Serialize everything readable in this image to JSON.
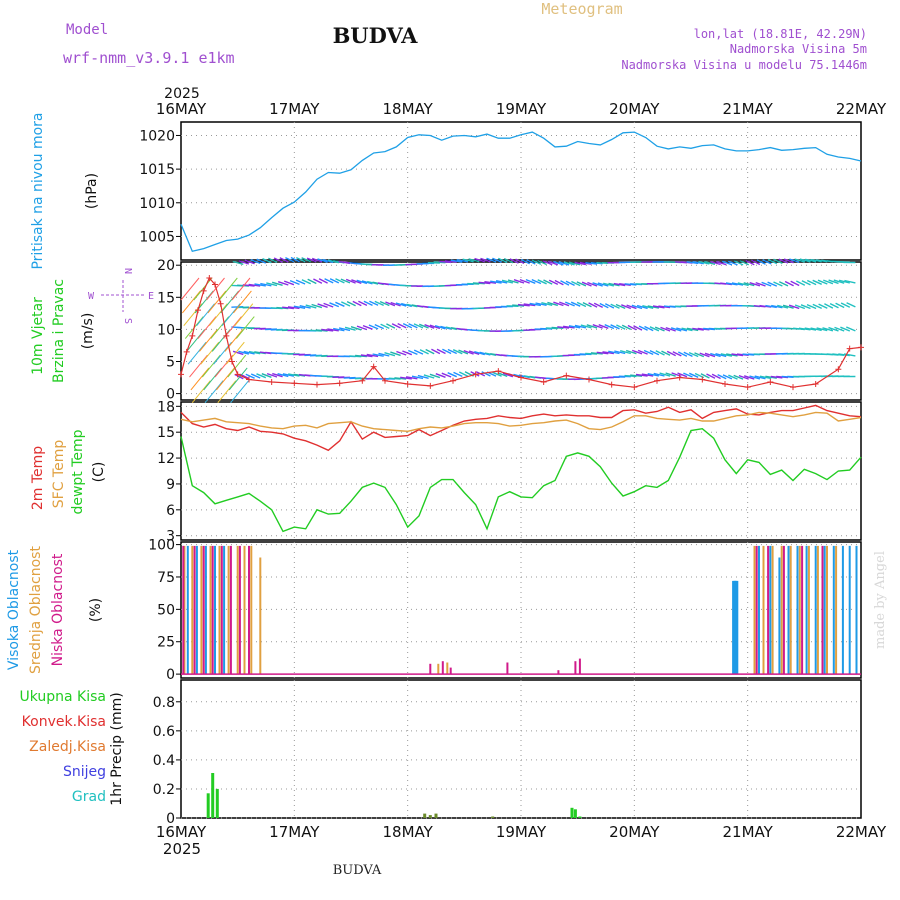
{
  "header": {
    "model_label": "Model",
    "model_name": "wrf-nmm_v3.9.1 e1km",
    "title": "BUDVA",
    "meteogram_label": "Meteogram",
    "coords": "lon,lat (18.81E, 42.29N)",
    "elevation": "Nadmorska Visina 5m",
    "model_elevation": "Nadmorska Visina u modelu 75.1446m",
    "footer_title": "BUDVA",
    "credit": "made by Angel"
  },
  "colors": {
    "pressure": "#1fa0e6",
    "wind_speed": "#e03030",
    "temp2m": "#e03030",
    "sfc_temp": "#e0a040",
    "dewpt": "#22cc22",
    "high_cloud": "#1e9ae6",
    "mid_cloud": "#e0a040",
    "low_cloud": "#d01a8a",
    "precip": "#22cc22",
    "title_purple": "#a050d0",
    "gold": "#e0c080"
  },
  "time_axis": {
    "year": "2025",
    "ticks": [
      "16MAY",
      "17MAY",
      "18MAY",
      "19MAY",
      "20MAY",
      "21MAY",
      "22MAY"
    ]
  },
  "chart_data": [
    {
      "type": "line",
      "panel": "pressure",
      "ylabel_main": "Pritisak na nivou mora",
      "ylabel_unit": "(hPa)",
      "yticks": [
        "1005",
        "1010",
        "1015",
        "1020"
      ],
      "ylim": [
        1001.5,
        1022
      ],
      "x": [
        0,
        0.1,
        0.2,
        0.3,
        0.4,
        0.5,
        0.6,
        0.7,
        0.8,
        0.9,
        1.0,
        1.1,
        1.2,
        1.3,
        1.4,
        1.5,
        1.6,
        1.7,
        1.8,
        1.9,
        2.0,
        2.1,
        2.2,
        2.3,
        2.4,
        2.5,
        2.6,
        2.7,
        2.8,
        2.9,
        3.0,
        3.1,
        3.2,
        3.3,
        3.4,
        3.5,
        3.6,
        3.7,
        3.8,
        3.9,
        4.0,
        4.1,
        4.2,
        4.3,
        4.4,
        4.5,
        4.6,
        4.7,
        4.8,
        4.9,
        5.0,
        5.1,
        5.2,
        5.3,
        5.4,
        5.5,
        5.6,
        5.7,
        5.8,
        5.9,
        6.0
      ],
      "values": [
        1006.8,
        1002.8,
        1003.2,
        1003.8,
        1004.4,
        1004.6,
        1005.2,
        1006.3,
        1007.8,
        1009.2,
        1010.1,
        1011.6,
        1013.5,
        1014.5,
        1014.4,
        1014.9,
        1016.3,
        1017.4,
        1017.6,
        1018.3,
        1019.7,
        1020.1,
        1020.0,
        1019.3,
        1019.9,
        1020.0,
        1019.8,
        1020.2,
        1019.6,
        1019.6,
        1020.1,
        1020.5,
        1019.6,
        1018.3,
        1018.4,
        1019.1,
        1018.8,
        1018.6,
        1019.4,
        1020.4,
        1020.5,
        1019.7,
        1018.4,
        1018.0,
        1018.3,
        1018.1,
        1018.5,
        1018.6,
        1018.0,
        1017.7,
        1017.7,
        1017.9,
        1018.2,
        1017.8,
        1017.9,
        1018.1,
        1018.2,
        1017.2,
        1016.8,
        1016.6,
        1016.2
      ]
    },
    {
      "type": "line",
      "panel": "wind",
      "ylabel_main": "10m Vjetar",
      "ylabel_sub": "Brzina i Pravac",
      "ylabel_unit": "(m/s)",
      "compass": {
        "n": "N",
        "s": "S",
        "e": "E",
        "w": "W"
      },
      "yticks": [
        "0",
        "5",
        "10",
        "15",
        "20"
      ],
      "ylim": [
        -1,
        20.5
      ],
      "x": [
        0,
        0.05,
        0.1,
        0.15,
        0.2,
        0.25,
        0.3,
        0.35,
        0.4,
        0.45,
        0.5,
        0.6,
        0.8,
        1.0,
        1.2,
        1.4,
        1.6,
        1.7,
        1.8,
        2.0,
        2.2,
        2.4,
        2.6,
        2.8,
        3.0,
        3.2,
        3.4,
        3.6,
        3.8,
        4.0,
        4.2,
        4.4,
        4.6,
        4.8,
        5.0,
        5.2,
        5.4,
        5.6,
        5.8,
        5.9,
        6.0
      ],
      "values": [
        3.0,
        6.5,
        9.0,
        13.0,
        16.0,
        18.0,
        17.0,
        14.0,
        9.0,
        5.0,
        3.0,
        2.2,
        1.8,
        1.6,
        1.4,
        1.6,
        2.0,
        4.2,
        2.0,
        1.5,
        1.2,
        2.0,
        3.0,
        3.5,
        2.5,
        1.8,
        2.8,
        2.2,
        1.4,
        1.0,
        2.0,
        2.5,
        2.2,
        1.5,
        1.0,
        1.8,
        1.0,
        1.5,
        3.8,
        7.0,
        7.2
      ],
      "wind_levels": [
        2.5,
        6,
        10,
        13.5,
        17,
        20.3
      ]
    },
    {
      "type": "line",
      "panel": "temperature",
      "ylabel_2m": "2m Temp",
      "ylabel_sfc": "SFC Temp",
      "ylabel_dew": "dewpt Temp",
      "ylabel_unit": "(C)",
      "yticks": [
        "3",
        "6",
        "9",
        "12",
        "15",
        "18"
      ],
      "ylim": [
        2.5,
        18.5
      ],
      "x": [
        0,
        0.1,
        0.2,
        0.3,
        0.4,
        0.5,
        0.6,
        0.7,
        0.8,
        0.9,
        1.0,
        1.1,
        1.2,
        1.3,
        1.4,
        1.5,
        1.6,
        1.7,
        1.8,
        1.9,
        2.0,
        2.1,
        2.2,
        2.3,
        2.4,
        2.5,
        2.6,
        2.7,
        2.8,
        2.9,
        3.0,
        3.1,
        3.2,
        3.3,
        3.4,
        3.5,
        3.6,
        3.7,
        3.8,
        3.9,
        4.0,
        4.1,
        4.2,
        4.3,
        4.4,
        4.5,
        4.6,
        4.7,
        4.8,
        4.9,
        5.0,
        5.1,
        5.2,
        5.3,
        5.4,
        5.5,
        5.6,
        5.7,
        5.8,
        5.9,
        6.0
      ],
      "series": [
        {
          "name": "2m Temp",
          "values": [
            17.3,
            16.0,
            15.6,
            15.9,
            15.4,
            15.2,
            15.6,
            15.1,
            15.0,
            14.8,
            14.3,
            14.0,
            13.5,
            12.9,
            14.0,
            16.2,
            14.2,
            15.0,
            14.4,
            14.5,
            14.6,
            15.3,
            14.6,
            15.2,
            15.8,
            16.3,
            16.5,
            16.6,
            16.9,
            16.7,
            16.6,
            16.9,
            17.1,
            16.9,
            17.0,
            16.9,
            16.9,
            16.7,
            16.7,
            17.5,
            17.6,
            17.2,
            17.4,
            17.9,
            17.3,
            17.6,
            16.6,
            17.3,
            17.5,
            17.7,
            17.1,
            17.0,
            17.3,
            17.5,
            17.5,
            17.8,
            18.1,
            17.5,
            17.2,
            16.9,
            16.8
          ]
        },
        {
          "name": "SFC Temp",
          "values": [
            16.5,
            16.2,
            16.4,
            16.6,
            16.2,
            16.1,
            16.0,
            15.7,
            15.5,
            15.4,
            15.7,
            15.8,
            15.5,
            16.0,
            16.1,
            16.2,
            15.7,
            15.4,
            15.3,
            15.2,
            15.1,
            15.4,
            15.6,
            15.5,
            15.7,
            16.0,
            16.1,
            16.1,
            16.0,
            15.7,
            15.8,
            16.0,
            16.1,
            16.3,
            16.4,
            16.0,
            15.4,
            15.3,
            15.6,
            16.2,
            16.9,
            16.9,
            16.6,
            16.5,
            16.4,
            16.6,
            16.3,
            16.3,
            16.6,
            16.9,
            17.0,
            17.3,
            17.2,
            17.0,
            16.8,
            17.0,
            17.3,
            17.2,
            16.3,
            16.5,
            16.7
          ]
        },
        {
          "name": "dewpt Temp",
          "values": [
            14.5,
            8.8,
            8.0,
            6.7,
            7.1,
            7.5,
            7.9,
            7.0,
            6.0,
            3.5,
            4.0,
            3.8,
            6.0,
            5.5,
            5.6,
            7.0,
            8.6,
            9.1,
            8.6,
            6.6,
            4.0,
            5.3,
            8.6,
            9.5,
            9.5,
            8.0,
            6.6,
            3.8,
            7.5,
            8.1,
            7.5,
            7.4,
            8.8,
            9.4,
            12.2,
            12.6,
            12.2,
            11.0,
            9.1,
            7.6,
            8.1,
            8.8,
            8.6,
            9.4,
            12.1,
            15.2,
            15.4,
            14.3,
            11.8,
            10.2,
            11.8,
            11.5,
            10.1,
            10.6,
            9.4,
            10.7,
            10.2,
            9.5,
            10.5,
            10.6,
            12.1
          ]
        }
      ]
    },
    {
      "type": "bar",
      "panel": "clouds",
      "ylabel_high": "Visoka Oblacnost",
      "ylabel_mid": "Srednja Oblacnost",
      "ylabel_low": "Niska Oblacnost",
      "ylabel_unit": "(%)",
      "yticks": [
        "0",
        "25",
        "50",
        "75",
        "100"
      ],
      "ylim": [
        -3,
        102
      ],
      "series": [
        {
          "name": "Visoka Oblacnost",
          "x": [
            0.06,
            0.14,
            0.22,
            0.3,
            0.38,
            4.88,
            4.89,
            4.9,
            5.1,
            5.2,
            5.28,
            5.36,
            5.44,
            5.52,
            5.6,
            5.68,
            5.76,
            5.84,
            5.9,
            5.96
          ],
          "values": [
            99,
            99,
            99,
            99,
            99,
            72,
            72,
            72,
            99,
            99,
            90,
            99,
            99,
            99,
            99,
            99,
            99,
            99,
            99,
            99
          ]
        },
        {
          "name": "Srednja Oblacnost",
          "x": [
            0.03,
            0.1,
            0.18,
            0.26,
            0.34,
            0.42,
            0.5,
            0.56,
            0.62,
            0.7,
            2.27,
            2.35,
            5.06,
            5.14,
            5.22,
            5.3,
            5.38,
            5.46,
            5.54,
            5.62,
            5.7,
            5.78
          ],
          "values": [
            99,
            99,
            99,
            99,
            99,
            99,
            99,
            99,
            99,
            90,
            8,
            9,
            99,
            99,
            99,
            99,
            99,
            99,
            99,
            99,
            99,
            99
          ]
        },
        {
          "name": "Niska Oblacnost",
          "x": [
            0.02,
            0.12,
            0.2,
            0.28,
            0.36,
            0.44,
            0.52,
            0.6,
            2.2,
            2.31,
            2.38,
            2.88,
            3.33,
            3.48,
            3.52,
            5.08,
            5.18,
            5.32,
            5.48,
            5.66
          ],
          "values": [
            99,
            99,
            99,
            99,
            99,
            99,
            99,
            99,
            8,
            10,
            5,
            9,
            3,
            10,
            12,
            99,
            99,
            99,
            99,
            99
          ]
        }
      ]
    },
    {
      "type": "bar",
      "panel": "precip",
      "ylabel_unit": "1hr Precip (mm)",
      "legend": [
        "Ukupna Kisa",
        "Konvek.Kisa",
        "Zaledj.Kisa",
        "Snijeg",
        "Grad"
      ],
      "legend_colors": [
        "#22cc22",
        "#e03030",
        "#e07a30",
        "#4040e0",
        "#20c0c0"
      ],
      "yticks": [
        "0",
        "0.2",
        "0.4",
        "0.6",
        "0.8"
      ],
      "ylim": [
        0,
        0.95
      ],
      "x": [
        0.24,
        0.28,
        0.32,
        2.15,
        2.2,
        2.25,
        2.75,
        3.45,
        3.48,
        3.52
      ],
      "values": [
        0.17,
        0.31,
        0.2,
        0.03,
        0.02,
        0.03,
        0.01,
        0.07,
        0.06,
        0.01
      ]
    }
  ]
}
